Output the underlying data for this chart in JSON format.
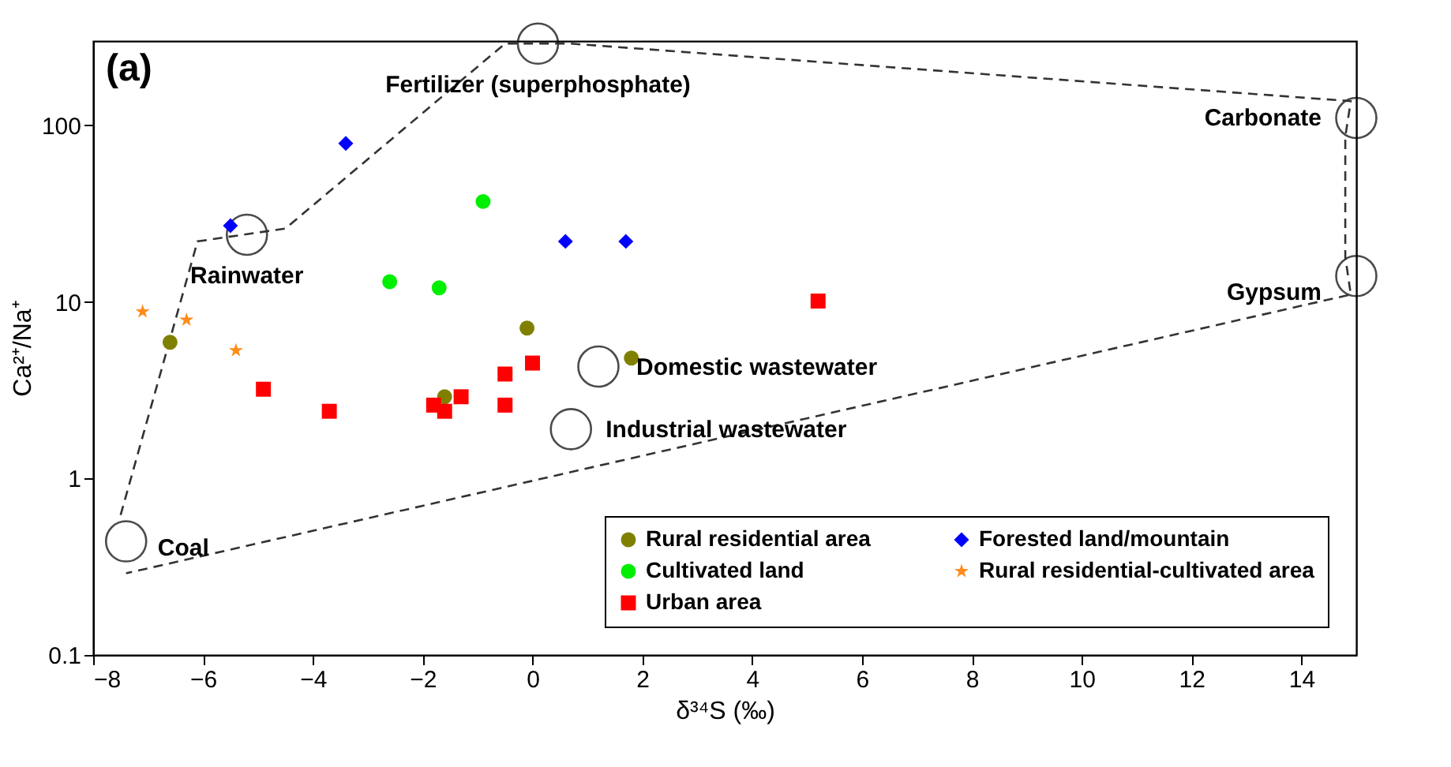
{
  "chart_data": {
    "type": "scatter",
    "xlabel": "δ³⁴S (‰)",
    "ylabel": "Ca²⁺/Na⁺",
    "log": "y",
    "xlim": [
      -8,
      15
    ],
    "xticks": [
      -8,
      -6,
      -4,
      -2,
      0,
      2,
      4,
      6,
      8,
      10,
      12,
      14
    ],
    "ylim": [
      0.1,
      300
    ],
    "yticks": [
      0.1,
      1,
      10,
      100
    ],
    "grid": false,
    "legend": "bottom right",
    "series": [
      {
        "name": "Rural residential area",
        "color": "#808000",
        "marker": "circle",
        "x": [
          -6.6,
          -1.6,
          -0.1,
          1.8
        ],
        "values": [
          5.9,
          2.9,
          7.1,
          4.8
        ]
      },
      {
        "name": "Cultivated land",
        "color": "#00ee00",
        "marker": "circle",
        "x": [
          -0.9,
          -2.6,
          -1.7
        ],
        "values": [
          37,
          13,
          12
        ]
      },
      {
        "name": "Urban area",
        "color": "#ff0000",
        "marker": "square",
        "x": [
          -4.9,
          -3.7,
          -1.8,
          -1.6,
          -1.3,
          -0.5,
          -0.5,
          0.0,
          5.2
        ],
        "values": [
          3.2,
          2.4,
          2.6,
          2.4,
          2.9,
          3.9,
          2.6,
          4.5,
          10.1
        ]
      },
      {
        "name": "Forested land/mountain",
        "color": "#0000ff",
        "marker": "diamond",
        "x": [
          -3.4,
          -5.5,
          0.6,
          1.7
        ],
        "values": [
          79,
          27,
          22,
          22
        ]
      },
      {
        "name": "Rural residential-cultivated area",
        "color": "#ff8c1a",
        "marker": "star",
        "x": [
          -7.1,
          -6.3,
          -5.4
        ],
        "values": [
          8.8,
          7.9,
          5.3
        ]
      },
      {
        "type": "scatter",
        "color": "#000000",
        "marker": "circle",
        "x": [
          -7.4,
          -5.2,
          0.1,
          15.0,
          15.0,
          1.2,
          0.7
        ],
        "values": [
          0.44,
          24,
          290,
          110,
          14,
          4.3,
          1.9
        ]
      },
      {
        "type": "line",
        "color": "#333333",
        "line_style": "dashed",
        "x": [
          -7.5,
          -6.1,
          -4.5,
          -0.5,
          0.7,
          14.9,
          14.8,
          14.8,
          14.9,
          -7.4
        ],
        "values": [
          0.62,
          22,
          26,
          290,
          290,
          137,
          86,
          18,
          11,
          0.29
        ]
      }
    ],
    "annotations": [
      "(a)",
      {
        "text": "Coal",
        "x": -7.4,
        "y": 0.44
      },
      {
        "text": "Rainwater",
        "x": -5.2,
        "y": 24
      },
      {
        "text": "Fertilizer (superphosphate)",
        "x": 0.1,
        "y": 290
      },
      {
        "text": "Carbonate",
        "x": 15.0,
        "y": 110
      },
      {
        "text": "Gypsum",
        "x": 15.0,
        "y": 14
      },
      {
        "text": "Domestic wastewater",
        "x": 1.2,
        "y": 4.3
      },
      {
        "text": "Industrial wastewater",
        "x": 0.7,
        "y": 1.9
      }
    ]
  }
}
